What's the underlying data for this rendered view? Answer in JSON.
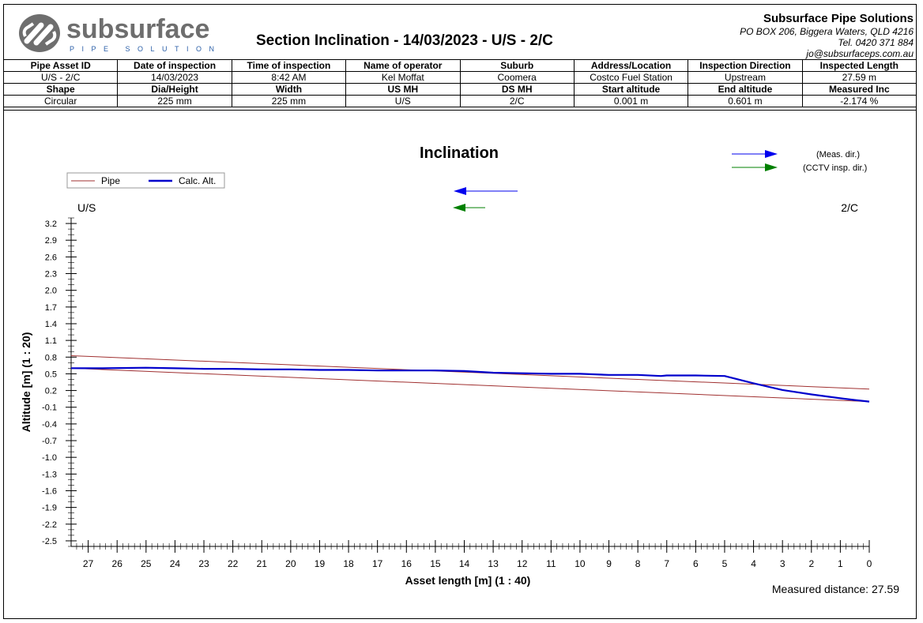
{
  "logo": {
    "word": "subsurface",
    "tagline": "PIPE SOLUTIONS"
  },
  "report_title": "Section Inclination - 14/03/2023 - U/S - 2/C",
  "company": {
    "name": "Subsurface Pipe Solutions",
    "address": "PO BOX 206, Biggera Waters, QLD 4216",
    "phone": "Tel. 0420 371 884",
    "email": "jo@subsurfaceps.com.au"
  },
  "info_rows": [
    {
      "headers": [
        "Pipe Asset ID",
        "Date of inspection",
        "Time of inspection",
        "Name of operator",
        "Suburb",
        "Address/Location",
        "Inspection Direction",
        "Inspected Length"
      ],
      "values": [
        "U/S - 2/C",
        "14/03/2023",
        "8:42 AM",
        "Kel Moffat",
        "Coomera",
        "Costco Fuel Station",
        "Upstream",
        "27.59 m"
      ]
    },
    {
      "headers": [
        "Shape",
        "Dia/Height",
        "Width",
        "US MH",
        "DS MH",
        "Start altitude",
        "End altitude",
        "Measured Inc"
      ],
      "values": [
        "Circular",
        "225 mm",
        "225 mm",
        "U/S",
        "2/C",
        "0.001 m",
        "0.601 m",
        "-2.174 %"
      ]
    }
  ],
  "chart_data": {
    "type": "line",
    "title": "Inclination",
    "xlabel": "Asset length [m] (1 : 40)",
    "ylabel": "Altitude [m] (1 : 20)",
    "xlim": [
      27.59,
      0
    ],
    "ylim": [
      -2.6,
      3.3
    ],
    "x_ticks": [
      27,
      26,
      25,
      24,
      23,
      22,
      21,
      20,
      19,
      18,
      17,
      16,
      15,
      14,
      13,
      12,
      11,
      10,
      9,
      8,
      7,
      6,
      5,
      4,
      3,
      2,
      1,
      0
    ],
    "y_ticks": [
      3.2,
      2.9,
      2.6,
      2.3,
      2.0,
      1.7,
      1.4,
      1.1,
      0.8,
      0.5,
      0.2,
      -0.1,
      -0.4,
      -0.7,
      -1.0,
      -1.3,
      -1.6,
      -1.9,
      -2.2,
      -2.5
    ],
    "y_tick_labels": [
      "3.2",
      "2.9",
      "2.6",
      "2.3",
      "2.0",
      "1.7",
      "1.4",
      "1.1",
      "0.8",
      "0.5",
      "0.2",
      "-0.1",
      "-0.4",
      "-0.7",
      "-1.0",
      "-1.3",
      "-1.6",
      "-1.9",
      "-2.2",
      "-2.5"
    ],
    "left_end_label": "U/S",
    "right_end_label": "2/C",
    "legend": {
      "placement": "top-left",
      "items": [
        {
          "label": "Pipe",
          "color": "#a03030"
        },
        {
          "label": "Calc. Alt.",
          "color": "#0000cc"
        }
      ]
    },
    "direction_legend": [
      {
        "label": "(Meas. dir.)",
        "color": "#0000ee"
      },
      {
        "label": "(CCTV insp. dir.)",
        "color": "#008000"
      }
    ],
    "series": [
      {
        "name": "Pipe",
        "color": "#a03030",
        "lines": [
          {
            "x": [
              27.59,
              0
            ],
            "y": [
              0.826,
              0.226
            ]
          },
          {
            "x": [
              27.59,
              0
            ],
            "y": [
              0.601,
              0.001
            ]
          }
        ]
      },
      {
        "name": "Calc. Alt.",
        "color": "#0000cc",
        "x": [
          27.59,
          26.5,
          25,
          24,
          23,
          22,
          21,
          20,
          19,
          18,
          17,
          16,
          15,
          14,
          13,
          12,
          11,
          10,
          9,
          8,
          7.2,
          7,
          6,
          5,
          4,
          3,
          2,
          1,
          0.5,
          0
        ],
        "y": [
          0.601,
          0.6,
          0.61,
          0.6,
          0.59,
          0.59,
          0.58,
          0.58,
          0.57,
          0.57,
          0.56,
          0.56,
          0.56,
          0.55,
          0.52,
          0.51,
          0.5,
          0.5,
          0.48,
          0.48,
          0.46,
          0.47,
          0.47,
          0.46,
          0.33,
          0.21,
          0.13,
          0.06,
          0.03,
          0.001
        ]
      }
    ],
    "measured_distance_label": "Measured distance: 27.59"
  }
}
